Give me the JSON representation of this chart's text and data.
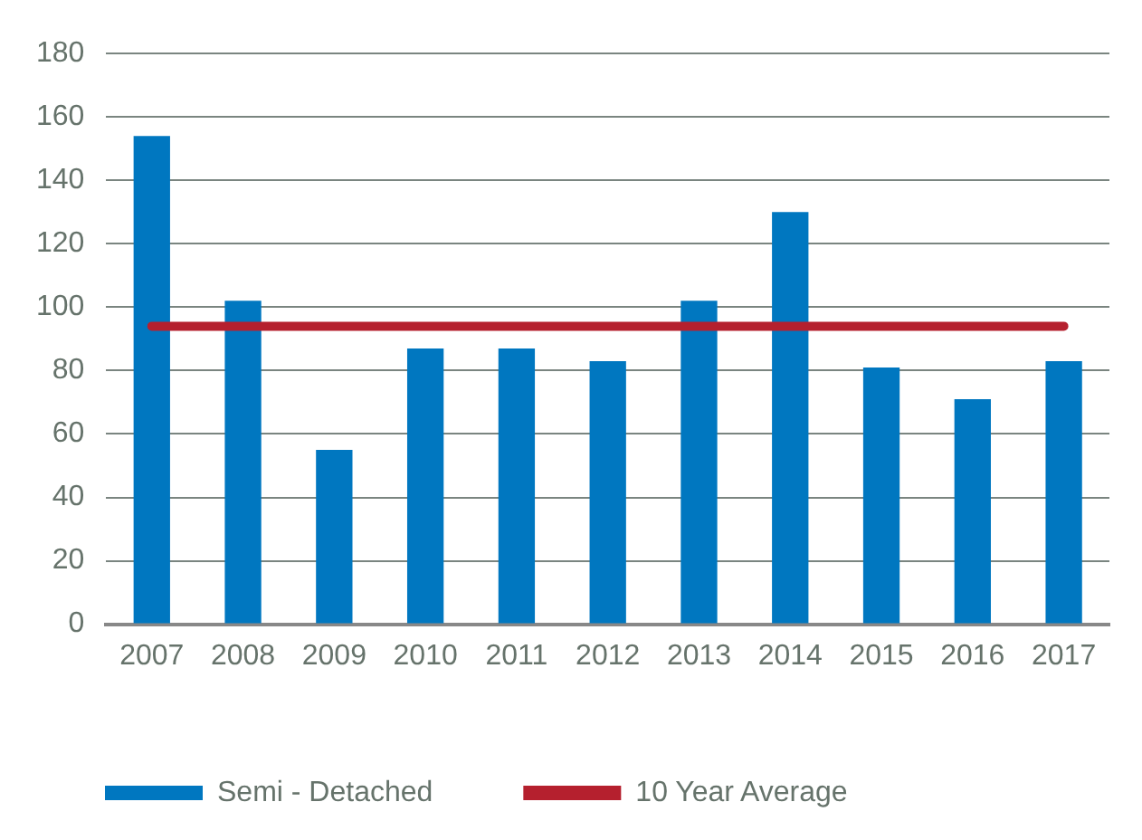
{
  "chart_data": {
    "type": "bar",
    "categories": [
      "2007",
      "2008",
      "2009",
      "2010",
      "2011",
      "2012",
      "2013",
      "2014",
      "2015",
      "2016",
      "2017"
    ],
    "series": [
      {
        "name": "Semi - Detached",
        "color": "#0077c0",
        "values": [
          154,
          102,
          55,
          87,
          87,
          83,
          102,
          130,
          81,
          71,
          83
        ]
      },
      {
        "name": "10 Year Average",
        "type": "line",
        "color": "#b5202e",
        "values": [
          94,
          94,
          94,
          94,
          94,
          94,
          94,
          94,
          94,
          94,
          94
        ]
      }
    ],
    "ylim": [
      0,
      180
    ],
    "yticks": [
      0,
      20,
      40,
      60,
      80,
      100,
      120,
      140,
      160,
      180
    ],
    "grid": "y",
    "legend": "bottom",
    "marker": "none"
  }
}
